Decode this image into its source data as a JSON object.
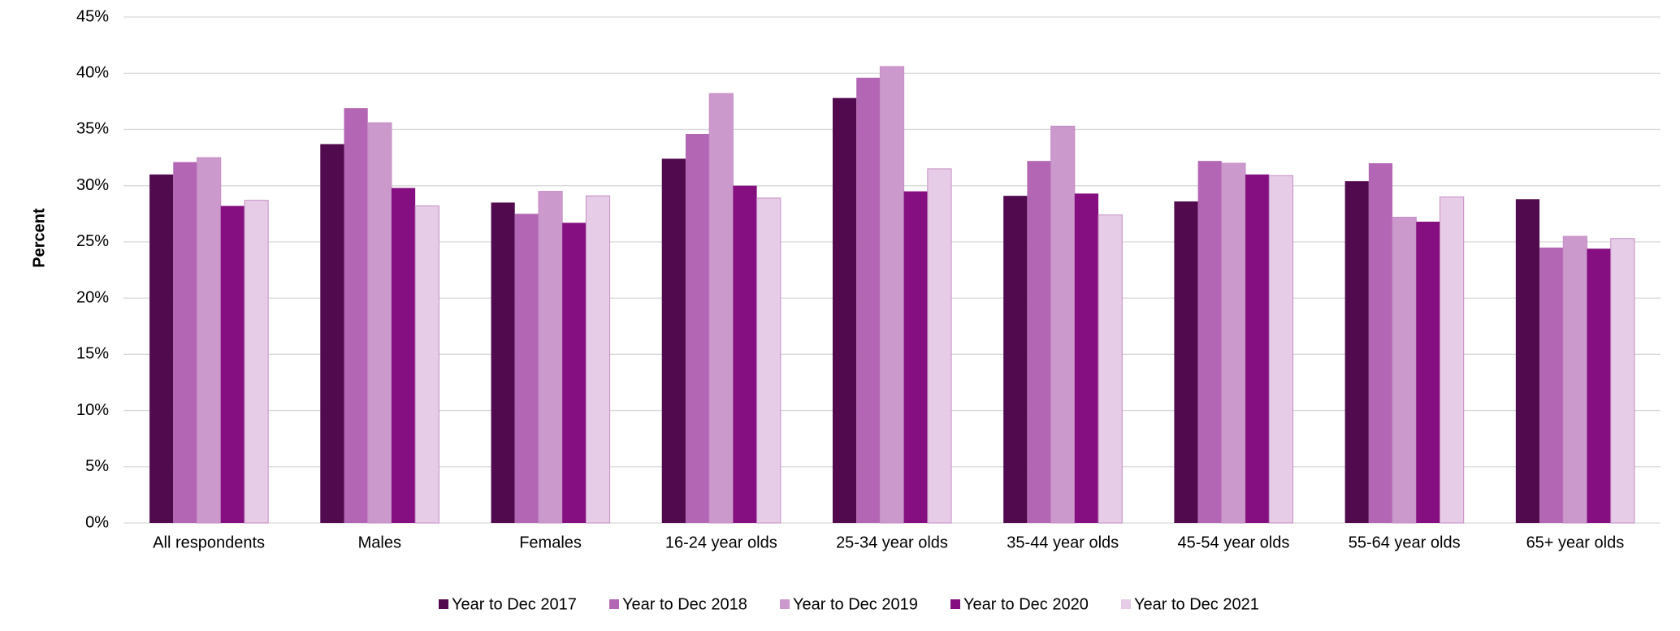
{
  "chart_data": {
    "type": "bar",
    "ylabel": "Percent",
    "categories": [
      "All respondents",
      "Males",
      "Females",
      "16-24 year olds",
      "25-34 year olds",
      "35-44 year olds",
      "45-54 year olds",
      "55-64 year olds",
      "65+ year olds"
    ],
    "series": [
      {
        "name": "Year to Dec 2017",
        "color": "#520a4e",
        "values": [
          31.0,
          33.7,
          28.5,
          32.4,
          37.8,
          29.1,
          28.6,
          30.4,
          28.8
        ]
      },
      {
        "name": "Year to Dec 2018",
        "color": "#b366b3",
        "values": [
          32.1,
          36.9,
          27.5,
          34.6,
          39.6,
          32.2,
          32.2,
          32.0,
          24.5
        ]
      },
      {
        "name": "Year to Dec 2019",
        "color": "#cc99cc",
        "values": [
          32.5,
          35.6,
          29.5,
          38.2,
          40.6,
          35.3,
          32.0,
          27.2,
          25.5
        ]
      },
      {
        "name": "Year to Dec 2020",
        "color": "#850f80",
        "values": [
          28.2,
          29.8,
          26.7,
          30.0,
          29.5,
          29.3,
          31.0,
          26.8,
          24.4
        ]
      },
      {
        "name": "Year to Dec 2021",
        "color": "#e6cce6",
        "values": [
          28.7,
          28.2,
          29.1,
          28.9,
          31.5,
          27.4,
          30.9,
          29.0,
          25.3
        ]
      }
    ],
    "ylim": [
      0,
      45
    ],
    "yticks": [
      {
        "value": 0,
        "label": "0%"
      },
      {
        "value": 5,
        "label": "5%"
      },
      {
        "value": 10,
        "label": "10%"
      },
      {
        "value": 15,
        "label": "15%"
      },
      {
        "value": 20,
        "label": "20%"
      },
      {
        "value": 25,
        "label": "25%"
      },
      {
        "value": 30,
        "label": "30%"
      },
      {
        "value": 35,
        "label": "35%"
      },
      {
        "value": 40,
        "label": "40%"
      },
      {
        "value": 45,
        "label": "45%"
      }
    ],
    "grid": true,
    "legend": "bottom"
  }
}
